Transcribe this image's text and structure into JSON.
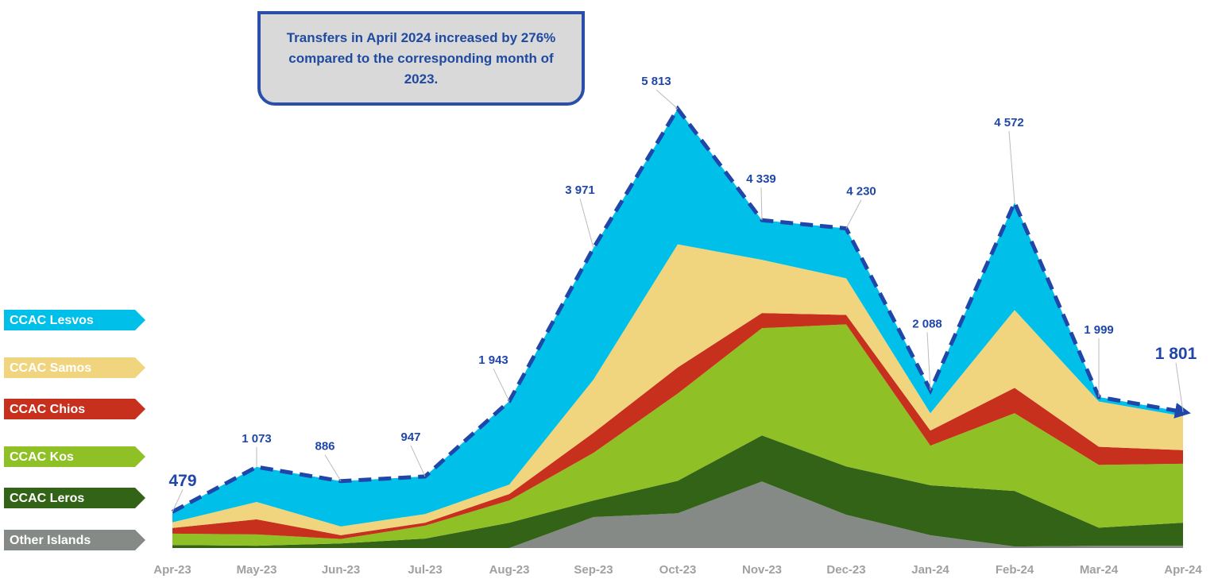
{
  "chart_data": {
    "type": "stacked-area",
    "annotation": "Transfers in April 2024 increased by 276% compared to the corresponding month of 2023.",
    "categories": [
      "Apr-23",
      "May-23",
      "Jun-23",
      "Jul-23",
      "Aug-23",
      "Sep-23",
      "Oct-23",
      "Nov-23",
      "Dec-23",
      "Jan-24",
      "Feb-24",
      "Mar-24",
      "Apr-24"
    ],
    "series": [
      {
        "name": "Other Islands",
        "color": "#868a86",
        "values": [
          0,
          0,
          0,
          0,
          0,
          410,
          460,
          880,
          440,
          170,
          20,
          30,
          30
        ]
      },
      {
        "name": "CCAC Leros",
        "color": "#336317",
        "values": [
          40,
          30,
          60,
          125,
          335,
          220,
          430,
          610,
          640,
          660,
          735,
          240,
          305
        ]
      },
      {
        "name": "CCAC Kos",
        "color": "#8fc126",
        "values": [
          150,
          150,
          60,
          170,
          295,
          630,
          1155,
          1420,
          1880,
          525,
          1030,
          830,
          780
        ]
      },
      {
        "name": "CCAC Chios",
        "color": "#c8301e",
        "values": [
          75,
          200,
          50,
          40,
          85,
          265,
          345,
          200,
          125,
          200,
          335,
          240,
          180
        ]
      },
      {
        "name": "CCAC Samos",
        "color": "#f0d57e",
        "values": [
          75,
          230,
          115,
          115,
          125,
          705,
          1630,
          705,
          485,
          230,
          1030,
          600,
          450
        ]
      },
      {
        "name": "CCAC Lesvos",
        "color": "#00bfe8",
        "values": [
          139,
          463,
          601,
          497,
          1103,
          1741,
          1793,
          524,
          660,
          303,
          1422,
          59,
          56
        ]
      }
    ],
    "totals": {
      "color": "#1f46a8",
      "values": [
        479,
        1073,
        886,
        947,
        1943,
        3971,
        5813,
        4339,
        4230,
        2088,
        4572,
        1999,
        1801
      ],
      "value_labels": [
        "479",
        "1 073",
        "886",
        "947",
        "1 943",
        "3 971",
        "5 813",
        "4 339",
        "4 230",
        "2 088",
        "4 572",
        "1 999",
        "1 801"
      ]
    }
  }
}
